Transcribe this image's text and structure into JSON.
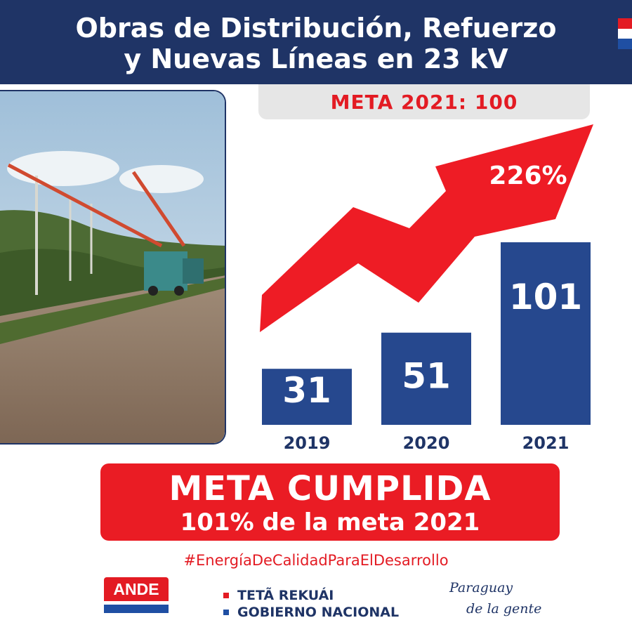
{
  "header": {
    "title_line1": "Obras de Distribución, Refuerzo",
    "title_line2": "y Nuevas Líneas en 23 kV"
  },
  "goal": {
    "label": "META 2021: 100"
  },
  "chart_data": {
    "type": "bar",
    "categories": [
      "2019",
      "2020",
      "2021"
    ],
    "values": [
      31,
      51,
      101
    ],
    "title": "",
    "xlabel": "",
    "ylabel": "",
    "ylim": [
      0,
      101
    ],
    "grid": false,
    "bar_color": "#26488e",
    "annotation": {
      "text": "226%",
      "shape": "rising-arrow",
      "color": "#ee1c25"
    }
  },
  "result": {
    "title": "META CUMPLIDA",
    "subtitle": "101% de la meta 2021"
  },
  "hashtag": "#EnergíaDeCalidadParaElDesarrollo",
  "logos": {
    "ande": "ANDE",
    "gov_line1": "TETÃ REKUÁI",
    "gov_line2": "GOBIERNO NACIONAL",
    "slogan_line1": "Paraguay",
    "slogan_line2": "de la gente"
  },
  "colors": {
    "navy": "#1f3466",
    "red": "#e31b23",
    "blue": "#26488e"
  }
}
